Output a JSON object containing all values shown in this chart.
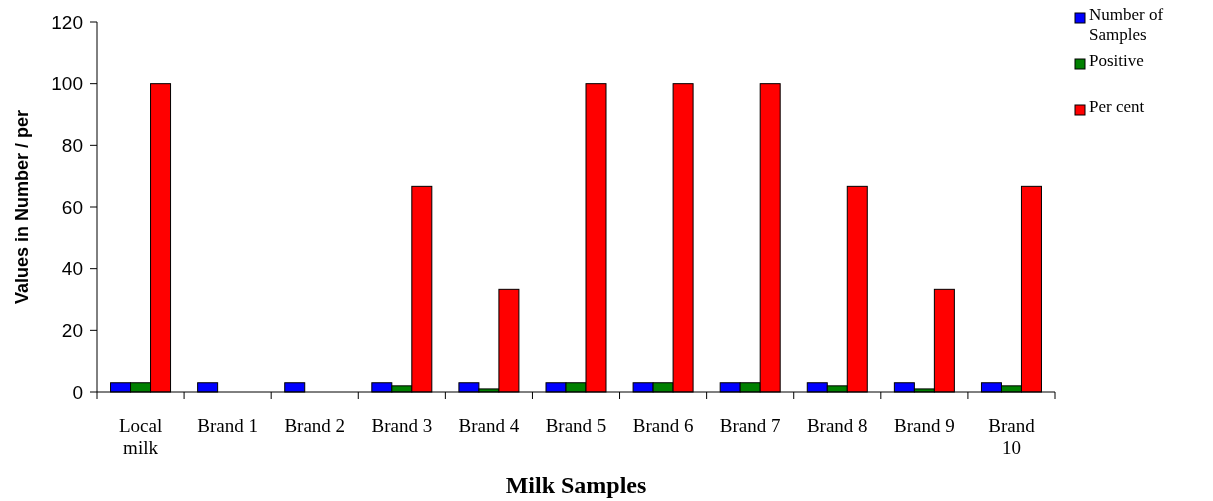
{
  "chart_data": {
    "type": "bar",
    "xlabel": "Milk Samples",
    "ylabel": "Values in Number / per",
    "categories": [
      "Local milk",
      "Brand 1",
      "Brand 2",
      "Brand 3",
      "Brand 4",
      "Brand 5",
      "Brand 6",
      "Brand 7",
      "Brand 8",
      "Brand 9",
      "Brand 10"
    ],
    "series": [
      {
        "name": "Number of Samples",
        "color": "#0000ff",
        "values": [
          3,
          3,
          3,
          3,
          3,
          3,
          3,
          3,
          3,
          3,
          3
        ]
      },
      {
        "name": "Positive",
        "color": "#008000",
        "values": [
          3,
          0,
          0,
          2,
          1,
          3,
          3,
          3,
          2,
          1,
          2
        ]
      },
      {
        "name": "Per cent",
        "color": "#ff0000",
        "values": [
          100,
          0,
          0,
          66.7,
          33.3,
          100,
          100,
          100,
          66.7,
          33.3,
          66.7
        ]
      }
    ],
    "ylim": [
      0,
      120
    ],
    "yticks": [
      0,
      20,
      40,
      60,
      80,
      100,
      120
    ],
    "grid": false,
    "legend": "top right"
  }
}
